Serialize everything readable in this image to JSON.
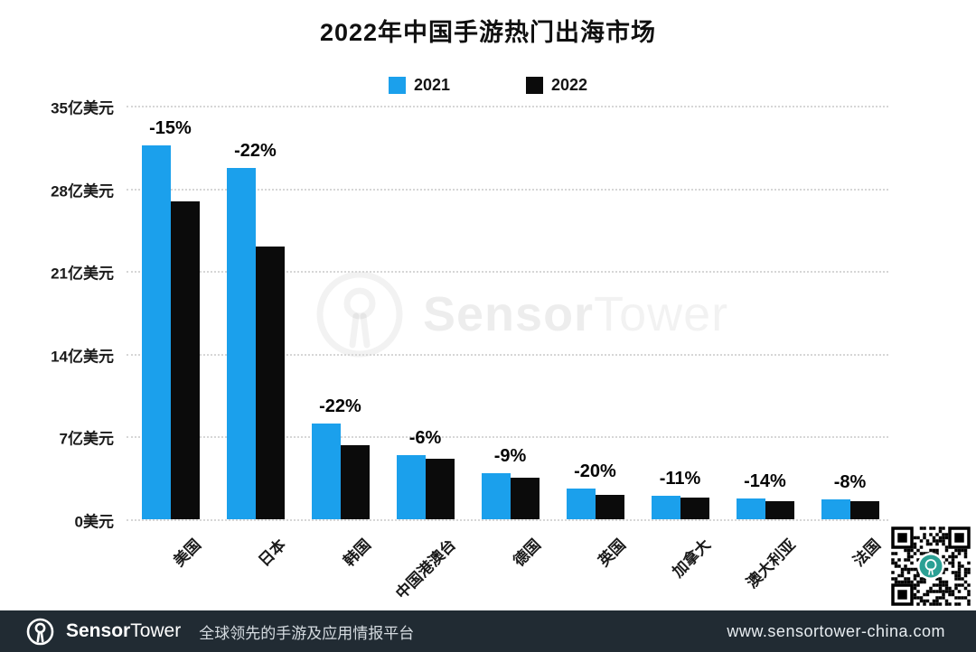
{
  "title": "2022年中国手游热门出海市场",
  "chart_data": {
    "type": "bar",
    "title": "2022年中国手游热门出海市场",
    "unit": "亿美元",
    "categories": [
      "美国",
      "日本",
      "韩国",
      "中国港澳台",
      "德国",
      "英国",
      "加拿大",
      "澳大利亚",
      "法国"
    ],
    "series": [
      {
        "name": "2021",
        "color": "#1BA0EC",
        "values": [
          31.6,
          29.7,
          8.1,
          5.4,
          3.9,
          2.6,
          2.0,
          1.75,
          1.65
        ]
      },
      {
        "name": "2022",
        "color": "#0b0b0b",
        "values": [
          26.9,
          23.1,
          6.3,
          5.1,
          3.55,
          2.1,
          1.8,
          1.5,
          1.5
        ]
      }
    ],
    "bar_labels": [
      "-15%",
      "-22%",
      "-22%",
      "-6%",
      "-9%",
      "-20%",
      "-11%",
      "-14%",
      "-8%"
    ],
    "yticks": [
      {
        "label": "35亿美元",
        "value": 35
      },
      {
        "label": "28亿美元",
        "value": 28
      },
      {
        "label": "21亿美元",
        "value": 21
      },
      {
        "label": "14亿美元",
        "value": 14
      },
      {
        "label": "7亿美元",
        "value": 7
      },
      {
        "label": "0美元",
        "value": 0
      }
    ],
    "ylim": [
      0,
      35
    ],
    "grid": "horizontal-dotted",
    "legend_position": "top-center"
  },
  "watermark": {
    "brand_bold": "Sensor",
    "brand_light": "Tower"
  },
  "footer": {
    "brand_bold": "Sensor",
    "brand_light": "Tower",
    "tagline": "全球领先的手游及应用情报平台",
    "website": "www.sensortower-china.com"
  },
  "colors": {
    "bar_2021": "#1BA0EC",
    "bar_2022": "#0b0b0b",
    "footer_bg": "#212b33",
    "qr_center_teal": "#2BA094"
  }
}
